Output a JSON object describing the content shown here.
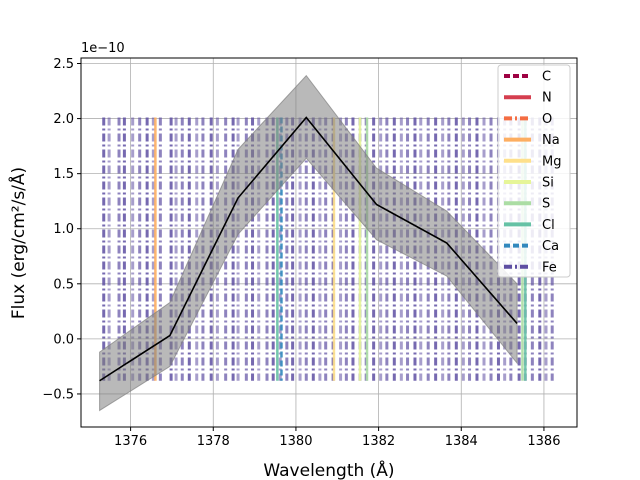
{
  "chart_data": {
    "type": "line",
    "title": "",
    "xlabel": "Wavelength (Å)",
    "ylabel": "Flux (erg/cm²/s/Å)",
    "offset_label": "1e−10",
    "xlim": [
      1374.8,
      1386.8
    ],
    "ylim": [
      -0.8,
      2.55
    ],
    "x_ticks": [
      1376,
      1378,
      1380,
      1382,
      1384,
      1386
    ],
    "y_ticks": [
      -0.5,
      0.0,
      0.5,
      1.0,
      1.5,
      2.0,
      2.5
    ],
    "x_tick_labels": [
      "1376",
      "1378",
      "1380",
      "1382",
      "1384",
      "1386"
    ],
    "y_tick_labels": [
      "−0.5",
      "0.0",
      "0.5",
      "1.0",
      "1.5",
      "2.0",
      "2.5"
    ],
    "grid": true,
    "legend_position": "upper right",
    "series": [
      {
        "color": "#000000",
        "x": [
          1375.25,
          1376.95,
          1378.6,
          1380.25,
          1381.95,
          1383.65,
          1385.35
        ],
        "y": [
          -0.38,
          0.03,
          1.28,
          2.01,
          1.22,
          0.87,
          0.14
        ],
        "band_upper": [
          -0.12,
          0.33,
          1.72,
          2.39,
          1.55,
          1.16,
          0.5
        ],
        "band_lower": [
          -0.65,
          -0.25,
          0.95,
          1.64,
          0.9,
          0.57,
          -0.22
        ]
      }
    ],
    "line_markers": {
      "y_min": -0.38,
      "y_max": 2.01,
      "elements": [
        {
          "name": "C",
          "color": "#9e0142",
          "linestyle": "dashed"
        },
        {
          "name": "N",
          "color": "#d53e4f",
          "linestyle": "solid"
        },
        {
          "name": "O",
          "color": "#f46d43",
          "linestyle": "dashdot"
        },
        {
          "name": "Na",
          "color": "#fdae61",
          "linestyle": "solid"
        },
        {
          "name": "Mg",
          "color": "#fee08b",
          "linestyle": "solid"
        },
        {
          "name": "Si",
          "color": "#e6f598",
          "linestyle": "solid"
        },
        {
          "name": "S",
          "color": "#abdda4",
          "linestyle": "solid"
        },
        {
          "name": "Cl",
          "color": "#66c2a5",
          "linestyle": "solid"
        },
        {
          "name": "Ca",
          "color": "#3288bd",
          "linestyle": "dashed"
        },
        {
          "name": "Fe",
          "color": "#5e4fa2",
          "linestyle": "dashdot"
        }
      ],
      "fe_wavelengths": [
        1375.35,
        1375.48,
        1375.72,
        1375.85,
        1376.05,
        1376.22,
        1376.4,
        1376.55,
        1376.72,
        1376.98,
        1377.1,
        1377.25,
        1377.42,
        1377.6,
        1377.75,
        1377.95,
        1378.1,
        1378.3,
        1378.48,
        1378.6,
        1378.8,
        1378.95,
        1379.1,
        1379.3,
        1379.45,
        1379.62,
        1379.78,
        1379.92,
        1380.1,
        1380.25,
        1380.42,
        1380.58,
        1380.72,
        1380.9,
        1381.08,
        1381.22,
        1381.38,
        1381.55,
        1381.7,
        1381.88,
        1382.05,
        1382.2,
        1382.38,
        1382.55,
        1382.7,
        1382.88,
        1383.02,
        1383.2,
        1383.38,
        1383.55,
        1383.7,
        1383.88,
        1384.05,
        1384.2,
        1384.38,
        1384.55,
        1384.72,
        1384.9,
        1385.05,
        1385.2,
        1385.4,
        1385.55,
        1385.72,
        1385.9,
        1386.05,
        1386.2
      ],
      "other_lines": [
        {
          "element": "Na",
          "wavelength": 1376.6
        },
        {
          "element": "Mg",
          "wavelength": 1380.92
        },
        {
          "element": "Si",
          "wavelength": 1381.55
        },
        {
          "element": "S",
          "wavelength": 1381.72
        },
        {
          "element": "Cl",
          "wavelength": 1379.55
        },
        {
          "element": "Ca",
          "wavelength": 1379.65
        },
        {
          "element": "S",
          "wavelength": 1385.48
        },
        {
          "element": "Cl",
          "wavelength": 1385.55
        }
      ]
    }
  }
}
